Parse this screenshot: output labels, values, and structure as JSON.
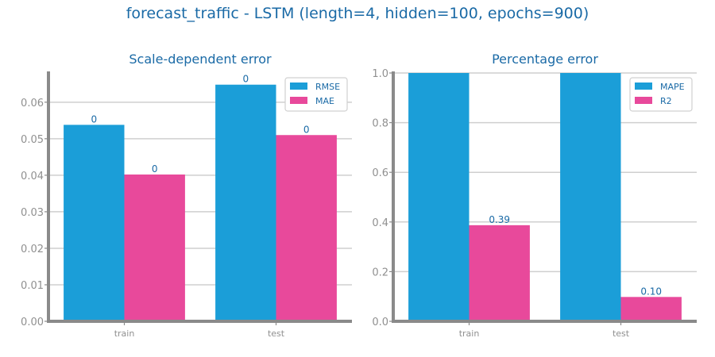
{
  "suptitle": "forecast_traffic - LSTM (length=4, hidden=100, epochs=900)",
  "colors": {
    "series_a": "#1b9ed8",
    "series_b": "#e8499b",
    "title": "#1a6aa6",
    "tick": "#909090",
    "axis": "#8a8a8a",
    "grid": "#cfcfcf",
    "label": "#1a6aa6"
  },
  "chart_data": [
    {
      "type": "bar",
      "title": "Scale-dependent error",
      "categories": [
        "train",
        "test"
      ],
      "series": [
        {
          "name": "RMSE",
          "values": [
            0.0538,
            0.0648
          ],
          "labels": [
            "0",
            "0"
          ]
        },
        {
          "name": "MAE",
          "values": [
            0.0402,
            0.051
          ],
          "labels": [
            "0",
            "0"
          ]
        }
      ],
      "ylim": [
        0,
        0.068
      ],
      "yticks": [
        0,
        0.01,
        0.02,
        0.03,
        0.04,
        0.05,
        0.06
      ],
      "ytick_labels": [
        "0.00",
        "0.01",
        "0.02",
        "0.03",
        "0.04",
        "0.05",
        "0.06"
      ],
      "xlabel": "",
      "ylabel": "",
      "grid": true,
      "legend": "top-right"
    },
    {
      "type": "bar",
      "title": "Percentage error",
      "categories": [
        "train",
        "test"
      ],
      "series": [
        {
          "name": "MAPE",
          "values": [
            1.0,
            1.0
          ],
          "labels": [
            "",
            ""
          ]
        },
        {
          "name": "R2",
          "values": [
            0.387,
            0.098
          ],
          "labels": [
            "0.39",
            "0.10"
          ]
        }
      ],
      "ylim": [
        0,
        1.0
      ],
      "yticks": [
        0,
        0.2,
        0.4,
        0.6,
        0.8,
        1.0
      ],
      "ytick_labels": [
        "0.0",
        "0.2",
        "0.4",
        "0.6",
        "0.8",
        "1.0"
      ],
      "xlabel": "",
      "ylabel": "",
      "grid": true,
      "legend": "top-right"
    }
  ]
}
